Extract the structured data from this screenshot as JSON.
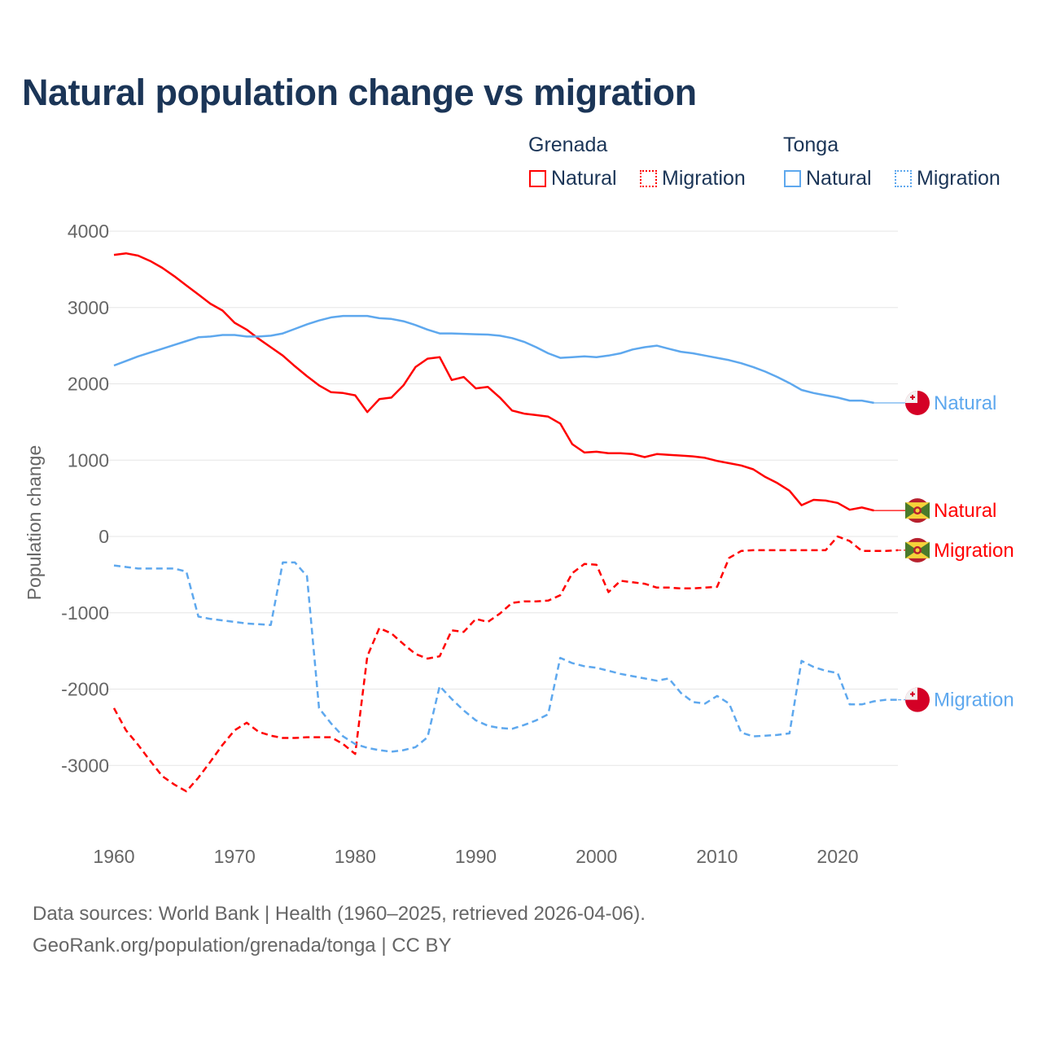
{
  "title": "Natural population change vs migration",
  "legend": {
    "groups": [
      {
        "name": "Grenada",
        "items": [
          "Natural",
          "Migration"
        ],
        "color": "#ff0000"
      },
      {
        "name": "Tonga",
        "items": [
          "Natural",
          "Migration"
        ],
        "color": "#5ea8ee"
      }
    ]
  },
  "sources": {
    "line1": "Data sources: World Bank | Health (1960–2025, retrieved 2026-04-06).",
    "line2": "GeoRank.org/population/grenada/tonga | CC BY"
  },
  "chart_data": {
    "type": "line",
    "title": "Natural population change vs migration",
    "xlabel": "",
    "ylabel": "Population change",
    "xlim": [
      1960,
      2025
    ],
    "ylim": [
      -3700,
      4000
    ],
    "xticks": [
      1960,
      1970,
      1980,
      1990,
      2000,
      2010,
      2020
    ],
    "yticks": [
      4000,
      3000,
      2000,
      1000,
      0,
      -1000,
      -2000,
      -3000
    ],
    "grid": true,
    "legend_position": "top-right",
    "x_start": 1960,
    "series": [
      {
        "name": "Grenada Natural",
        "end_label": "Natural",
        "color": "#ff0000",
        "dash": false,
        "flag": "grenada",
        "values": [
          3690,
          3710,
          3680,
          3610,
          3520,
          3410,
          3290,
          3170,
          3050,
          2960,
          2800,
          2710,
          2590,
          2480,
          2370,
          2230,
          2100,
          1980,
          1890,
          1880,
          1850,
          1630,
          1800,
          1820,
          1980,
          2220,
          2330,
          2350,
          2050,
          2090,
          1940,
          1960,
          1820,
          1650,
          1610,
          1590,
          1570,
          1480,
          1210,
          1100,
          1110,
          1090,
          1090,
          1080,
          1040,
          1080,
          1070,
          1060,
          1050,
          1030,
          990,
          960,
          930,
          880,
          780,
          700,
          600,
          410,
          480,
          470,
          440,
          350,
          380,
          340
        ]
      },
      {
        "name": "Grenada Migration",
        "end_label": "Migration",
        "color": "#ff0000",
        "dash": true,
        "flag": "grenada",
        "values": [
          -2250,
          -2540,
          -2730,
          -2940,
          -3140,
          -3250,
          -3340,
          -3160,
          -2950,
          -2730,
          -2540,
          -2440,
          -2560,
          -2610,
          -2640,
          -2640,
          -2630,
          -2630,
          -2630,
          -2720,
          -2850,
          -1570,
          -1200,
          -1270,
          -1410,
          -1540,
          -1600,
          -1570,
          -1230,
          -1250,
          -1080,
          -1120,
          -1010,
          -870,
          -850,
          -850,
          -840,
          -770,
          -480,
          -360,
          -370,
          -730,
          -580,
          -600,
          -620,
          -670,
          -670,
          -680,
          -680,
          -670,
          -660,
          -280,
          -190,
          -180,
          -180,
          -180,
          -180,
          -180,
          -180,
          -180,
          0,
          -60,
          -190,
          -190,
          -190,
          -180
        ]
      },
      {
        "name": "Tonga Natural",
        "end_label": "Natural",
        "color": "#5ea8ee",
        "dash": false,
        "flag": "tonga",
        "values": [
          2240,
          2300,
          2360,
          2410,
          2460,
          2510,
          2560,
          2610,
          2620,
          2640,
          2640,
          2620,
          2620,
          2630,
          2660,
          2720,
          2780,
          2830,
          2870,
          2890,
          2890,
          2890,
          2860,
          2850,
          2820,
          2770,
          2710,
          2660,
          2660,
          2655,
          2650,
          2645,
          2630,
          2600,
          2550,
          2480,
          2400,
          2340,
          2350,
          2360,
          2350,
          2370,
          2400,
          2450,
          2480,
          2500,
          2460,
          2420,
          2400,
          2370,
          2340,
          2310,
          2270,
          2220,
          2160,
          2090,
          2010,
          1920,
          1880,
          1850,
          1820,
          1780,
          1780,
          1750
        ]
      },
      {
        "name": "Tonga Migration",
        "end_label": "Migration",
        "color": "#5ea8ee",
        "dash": true,
        "flag": "tonga",
        "values": [
          -380,
          -400,
          -420,
          -420,
          -420,
          -420,
          -460,
          -1050,
          -1080,
          -1100,
          -1120,
          -1140,
          -1150,
          -1160,
          -340,
          -340,
          -520,
          -2250,
          -2450,
          -2620,
          -2720,
          -2770,
          -2800,
          -2820,
          -2800,
          -2760,
          -2630,
          -1960,
          -2130,
          -2280,
          -2410,
          -2480,
          -2510,
          -2520,
          -2470,
          -2410,
          -2330,
          -1590,
          -1660,
          -1700,
          -1720,
          -1760,
          -1800,
          -1830,
          -1860,
          -1890,
          -1860,
          -2050,
          -2170,
          -2190,
          -2090,
          -2190,
          -2570,
          -2620,
          -2610,
          -2600,
          -2580,
          -1630,
          -1710,
          -1760,
          -1790,
          -2200,
          -2200,
          -2160,
          -2140,
          -2140
        ]
      }
    ]
  }
}
